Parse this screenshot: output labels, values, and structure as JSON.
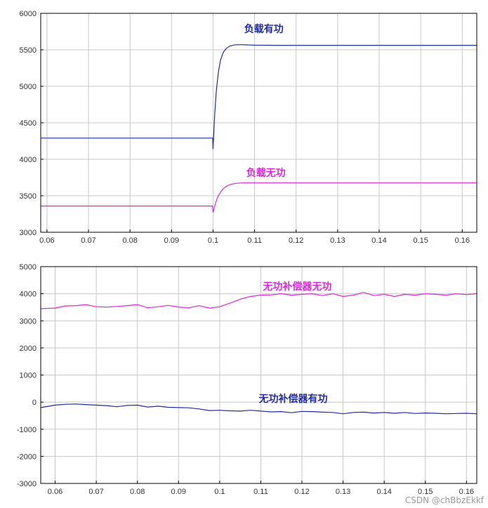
{
  "chart_data": [
    {
      "type": "line",
      "xlim": [
        0.0585,
        0.1635
      ],
      "ylim": [
        3000,
        6000
      ],
      "xticks": [
        "0.06",
        "0.07",
        "0.08",
        "0.09",
        "0.1",
        "0.11",
        "0.12",
        "0.13",
        "0.14",
        "0.15",
        "0.16"
      ],
      "yticks": [
        "3000",
        "3500",
        "4000",
        "4500",
        "5000",
        "5500",
        "6000"
      ],
      "grid": true,
      "series": [
        {
          "name": "负载有功",
          "color": "#1f2ba8",
          "x": [
            0.0585,
            0.0999,
            0.1,
            0.1004,
            0.1008,
            0.1013,
            0.1018,
            0.1025,
            0.1032,
            0.104,
            0.105,
            0.106,
            0.107,
            0.108,
            0.109,
            0.11,
            0.115,
            0.12,
            0.13,
            0.14,
            0.15,
            0.16,
            0.1635
          ],
          "y": [
            4290,
            4290,
            4140,
            4620,
            4950,
            5200,
            5360,
            5470,
            5520,
            5550,
            5565,
            5570,
            5570,
            5568,
            5565,
            5563,
            5562,
            5562,
            5562,
            5562,
            5562,
            5562,
            5562
          ]
        },
        {
          "name": "负载无功",
          "color": "#e025e0",
          "x": [
            0.0585,
            0.0999,
            0.1,
            0.1005,
            0.101,
            0.1018,
            0.1025,
            0.1035,
            0.1045,
            0.1055,
            0.1065,
            0.1075,
            0.109,
            0.11,
            0.12,
            0.13,
            0.14,
            0.15,
            0.16,
            0.1635
          ],
          "y": [
            3360,
            3360,
            3270,
            3380,
            3470,
            3550,
            3600,
            3640,
            3660,
            3670,
            3675,
            3676,
            3676,
            3676,
            3676,
            3676,
            3676,
            3676,
            3676,
            3676
          ]
        }
      ],
      "annotations": [
        {
          "text": "负载有功",
          "x": 0.1075,
          "y": 5740,
          "color": "#1f2ba8"
        },
        {
          "text": "负载无功",
          "x": 0.108,
          "y": 3770,
          "color": "#e025e0"
        }
      ]
    },
    {
      "type": "line",
      "xlim": [
        0.0565,
        0.1625
      ],
      "ylim": [
        -3000,
        5000
      ],
      "xticks": [
        "0.06",
        "0.07",
        "0.08",
        "0.09",
        "0.1",
        "0.11",
        "0.12",
        "0.13",
        "0.14",
        "0.15",
        "0.16"
      ],
      "yticks": [
        "-3000",
        "-2000",
        "-1000",
        "0",
        "1000",
        "2000",
        "3000",
        "4000",
        "5000"
      ],
      "grid": true,
      "series": [
        {
          "name": "无功补偿器无功",
          "color": "#e025e0",
          "x": [
            0.0565,
            0.06,
            0.0625,
            0.065,
            0.0675,
            0.07,
            0.0725,
            0.075,
            0.0775,
            0.08,
            0.0825,
            0.085,
            0.0875,
            0.09,
            0.0925,
            0.095,
            0.0975,
            0.1,
            0.1025,
            0.105,
            0.1075,
            0.11,
            0.1125,
            0.115,
            0.1175,
            0.12,
            0.1225,
            0.125,
            0.1275,
            0.13,
            0.1325,
            0.135,
            0.1375,
            0.14,
            0.1425,
            0.145,
            0.1475,
            0.15,
            0.1525,
            0.155,
            0.1575,
            0.16,
            0.1625
          ],
          "y": [
            3450,
            3470,
            3550,
            3560,
            3600,
            3520,
            3510,
            3530,
            3560,
            3600,
            3480,
            3520,
            3570,
            3510,
            3480,
            3560,
            3470,
            3520,
            3650,
            3800,
            3900,
            3950,
            3960,
            4000,
            3950,
            3980,
            4000,
            3930,
            4000,
            3900,
            3950,
            4050,
            3930,
            3980,
            3900,
            3980,
            3950,
            4000,
            3980,
            3950,
            4000,
            3970,
            4000
          ]
        },
        {
          "name": "无功补偿器有功",
          "color": "#1f2ba8",
          "x": [
            0.0565,
            0.06,
            0.0625,
            0.065,
            0.0675,
            0.07,
            0.0725,
            0.075,
            0.0775,
            0.08,
            0.0825,
            0.085,
            0.0875,
            0.09,
            0.0925,
            0.095,
            0.0975,
            0.1,
            0.1025,
            0.105,
            0.1075,
            0.11,
            0.1125,
            0.115,
            0.1175,
            0.12,
            0.1225,
            0.125,
            0.1275,
            0.13,
            0.1325,
            0.135,
            0.1375,
            0.14,
            0.1425,
            0.145,
            0.1475,
            0.15,
            0.1525,
            0.155,
            0.1575,
            0.16,
            0.1625
          ],
          "y": [
            -200,
            -110,
            -80,
            -70,
            -90,
            -110,
            -130,
            -170,
            -120,
            -110,
            -180,
            -150,
            -190,
            -200,
            -210,
            -250,
            -310,
            -300,
            -320,
            -330,
            -300,
            -330,
            -360,
            -350,
            -390,
            -340,
            -350,
            -370,
            -380,
            -430,
            -380,
            -370,
            -400,
            -380,
            -410,
            -380,
            -420,
            -400,
            -410,
            -430,
            -420,
            -410,
            -430
          ]
        }
      ],
      "annotations": [
        {
          "text": "无功补偿器无功",
          "x": 0.1105,
          "y": 4140,
          "color": "#e025e0"
        },
        {
          "text": "无功补偿器有功",
          "x": 0.1095,
          "y": 0,
          "color": "#1f2ba8"
        }
      ]
    }
  ],
  "watermark": "CSDN @chBbzEkkf"
}
